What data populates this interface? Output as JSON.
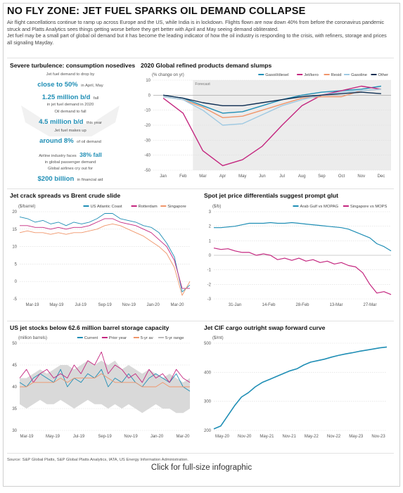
{
  "title": "NO FLY ZONE: JET FUEL SPARKS OIL DEMAND COLLAPSE",
  "intro_1": "Air flight cancellations continue to ramp up across Europe and the US, while India is in lockdown.  Flights flown are now down 40% from before the coronavirus pandemic struck and Platts Analytics sees things getting worse before they get better with April and May seeing demand obliterated.",
  "intro_2": "Jet fuel may be a small part of global oil demand but it has become the leading indicator of how the oil industry is responding to the crisis, with refiners, storage and prices all signaling Mayday.",
  "colors": {
    "accent": "#1f8eb5",
    "magenta": "#c4267f",
    "orange": "#f0956a",
    "lightblue": "#9ec9e2",
    "navy": "#0f2e52",
    "gray": "#bbbbbb"
  },
  "stats_panel": {
    "title": "Severe turbulence: consumption nosedives",
    "s1_pre": "Jet fuel demand to drop by",
    "s1_big": "close to 50%",
    "s1_post": "in April, May",
    "s2_big": "1.25 million b/d",
    "s2_post": "fall",
    "s2_line2": "in jet fuel demand in 2020",
    "s3_pre": "Oil demand to fall",
    "s3_big": "4.5 million b/d",
    "s3_post": "this year",
    "s4_pre": "Jet fuel makes up",
    "s4_big": "around 8%",
    "s4_post": "of oil demand",
    "s5_pre": "Airline industry faces",
    "s5_big": "38% fall",
    "s5_line2": "in global passenger demand",
    "s6_pre": "Global airlines cry out for",
    "s6_big": "$200 billion",
    "s6_post": "in financial aid"
  },
  "source": "Source: S&P Global Platts, S&P Global Platts Analytics, IATA, US Energy Information Administration.",
  "cta": "Click for full-size infographic",
  "chart_data": [
    {
      "id": "demand",
      "type": "line",
      "title": "2020 Global refined products demand slumps",
      "ylabel": "(% change on yr)",
      "forecast_label": "Forecast",
      "forecast_start": "Mar",
      "x": [
        "Jan",
        "Feb",
        "Mar",
        "Apr",
        "May",
        "Jun",
        "Jul",
        "Aug",
        "Sep",
        "Oct",
        "Nov",
        "Dec"
      ],
      "ylim": [
        -50,
        10
      ],
      "yticks": [
        10,
        0,
        -10,
        -20,
        -30,
        -40,
        -50
      ],
      "legend": "top-right",
      "series": [
        {
          "name": "Gasoil/diesel",
          "color": "#1f8eb5",
          "values": [
            0,
            -2,
            -7,
            -12,
            -11,
            -7,
            -3,
            0,
            2,
            3,
            4,
            6
          ]
        },
        {
          "name": "Jet/kero",
          "color": "#c4267f",
          "values": [
            -2,
            -12,
            -37,
            -47,
            -43,
            -34,
            -20,
            -7,
            0,
            3,
            6,
            4
          ]
        },
        {
          "name": "Resid",
          "color": "#f0956a",
          "values": [
            -1,
            -3,
            -8,
            -15,
            -14,
            -10,
            -6,
            -2,
            -1,
            -1,
            3,
            4
          ]
        },
        {
          "name": "Gasoline",
          "color": "#9ec9e2",
          "values": [
            -1,
            -3,
            -10,
            -20,
            -19,
            -13,
            -7,
            -3,
            0,
            2,
            3,
            4
          ]
        },
        {
          "name": "Other",
          "color": "#0f2e52",
          "values": [
            0,
            -2,
            -5,
            -7,
            -7,
            -5,
            -3,
            -1,
            0,
            1,
            2,
            1
          ]
        }
      ]
    },
    {
      "id": "crack",
      "type": "line",
      "title": "Jet crack spreads vs Brent crude slide",
      "ylabel": "($/barrel)",
      "x_labels": [
        "Mar-19",
        "May-19",
        "Jul-19",
        "Sep-19",
        "Nov-19",
        "Jan-20",
        "Mar-20"
      ],
      "ylim": [
        -5,
        20
      ],
      "yticks": [
        20,
        15,
        10,
        5,
        0,
        -5
      ],
      "legend": "top-right",
      "series": [
        {
          "name": "US Atlantic Coast",
          "color": "#1f8eb5",
          "values": [
            18.5,
            18,
            17,
            17.5,
            16.5,
            17,
            16,
            17,
            16.5,
            17,
            18,
            19.5,
            19.5,
            18,
            17.5,
            17,
            16,
            15.5,
            14,
            11,
            7,
            -3,
            -1
          ]
        },
        {
          "name": "Rotterdam",
          "color": "#c4267f",
          "values": [
            16,
            16,
            15.5,
            15.5,
            15,
            15.5,
            15,
            15.5,
            15.5,
            16,
            17,
            18,
            18,
            17,
            16.5,
            16,
            15,
            14,
            12,
            10,
            6,
            -2,
            -2
          ]
        },
        {
          "name": "Singapore",
          "color": "#f0956a",
          "values": [
            14,
            14.5,
            14,
            14,
            13.5,
            14,
            13.5,
            14,
            14,
            14.5,
            15,
            16,
            16.5,
            16,
            15,
            14,
            13,
            11.5,
            10,
            8,
            4,
            -4,
            0
          ]
        }
      ]
    },
    {
      "id": "spot",
      "type": "line",
      "title": "Spot jet price differentials suggest prompt glut",
      "ylabel": "($/b)",
      "x_labels": [
        "31-Jan",
        "14-Feb",
        "28-Feb",
        "13-Mar",
        "27-Mar"
      ],
      "ylim": [
        -3,
        3
      ],
      "yticks": [
        3,
        2,
        1,
        0,
        -1,
        -2,
        -3
      ],
      "legend": "top-right",
      "series": [
        {
          "name": "Arab Gulf vs MOPAG",
          "color": "#1f8eb5",
          "values": [
            1.9,
            1.9,
            1.95,
            2.0,
            2.1,
            2.2,
            2.2,
            2.2,
            2.25,
            2.2,
            2.2,
            2.25,
            2.2,
            2.15,
            2.1,
            2.05,
            2.0,
            1.95,
            1.9,
            1.8,
            1.6,
            1.4,
            1.2,
            0.8,
            0.6,
            0.3
          ]
        },
        {
          "name": "Singapore vs MOPS",
          "color": "#c4267f",
          "values": [
            0.5,
            0.4,
            0.45,
            0.3,
            0.2,
            0.2,
            0.0,
            0.1,
            0.0,
            -0.3,
            -0.2,
            -0.35,
            -0.2,
            -0.4,
            -0.3,
            -0.5,
            -0.4,
            -0.6,
            -0.5,
            -0.7,
            -0.8,
            -1.2,
            -2.0,
            -2.6,
            -2.5,
            -2.7
          ]
        }
      ]
    },
    {
      "id": "stocks",
      "type": "line",
      "title": "US jet stocks below 62.6 million barrel storage capacity",
      "ylabel": "(million barrels)",
      "x_labels": [
        "Mar-19",
        "May-19",
        "Jul-19",
        "Sep-19",
        "Nov-19",
        "Jan-20",
        "Mar-20"
      ],
      "ylim": [
        30,
        50
      ],
      "yticks": [
        50,
        45,
        40,
        35,
        30
      ],
      "legend": "top-right",
      "range_upper": [
        42,
        42,
        43,
        44,
        43,
        44,
        45,
        45,
        44,
        45,
        46,
        45,
        46,
        45,
        46,
        44,
        45,
        44,
        43,
        44,
        43,
        42,
        43,
        42,
        41,
        42
      ],
      "range_lower": [
        36,
        35,
        36,
        37,
        36,
        36,
        37,
        36,
        35,
        36,
        37,
        36,
        36,
        35,
        36,
        35,
        36,
        35,
        34,
        35,
        36,
        35,
        35,
        34,
        34,
        35
      ],
      "series": [
        {
          "name": "Current",
          "color": "#1f8eb5",
          "values": [
            41,
            40,
            42,
            43,
            42,
            41,
            44,
            40,
            42,
            41,
            43,
            42,
            44,
            40,
            42,
            41,
            43,
            41,
            40,
            42,
            43,
            42,
            41,
            43,
            40,
            39
          ]
        },
        {
          "name": "Prior year",
          "color": "#c4267f",
          "values": [
            42,
            44,
            41,
            43,
            44,
            42,
            43,
            42,
            45,
            43,
            46,
            45,
            48,
            43,
            45,
            44,
            42,
            43,
            41,
            44,
            42,
            43,
            41,
            44,
            42,
            41
          ]
        },
        {
          "name": "5-yr av",
          "color": "#f0956a",
          "values": [
            40,
            40,
            41,
            41,
            41,
            41,
            42,
            41,
            42,
            42,
            42,
            42,
            43,
            42,
            41,
            41,
            41,
            41,
            40,
            40,
            40,
            41,
            40,
            40,
            40,
            40
          ]
        },
        {
          "name": "5-yr range",
          "color": "#bbbbbb",
          "values": []
        }
      ]
    },
    {
      "id": "swap",
      "type": "line",
      "title": "Jet CIF cargo outright swap forward curve",
      "ylabel": "($/mt)",
      "x_labels": [
        "May-20",
        "Nov-20",
        "May-21",
        "Nov-21",
        "May-22",
        "Nov-22",
        "May-23",
        "Nov-23"
      ],
      "ylim": [
        200,
        500
      ],
      "yticks": [
        500,
        400,
        300,
        200
      ],
      "series": [
        {
          "name": "Swap",
          "color": "#1f8eb5",
          "values": [
            205,
            215,
            250,
            285,
            315,
            330,
            350,
            365,
            375,
            385,
            395,
            405,
            412,
            425,
            435,
            440,
            445,
            452,
            458,
            463,
            467,
            472,
            476,
            480,
            484,
            487
          ]
        }
      ]
    }
  ]
}
